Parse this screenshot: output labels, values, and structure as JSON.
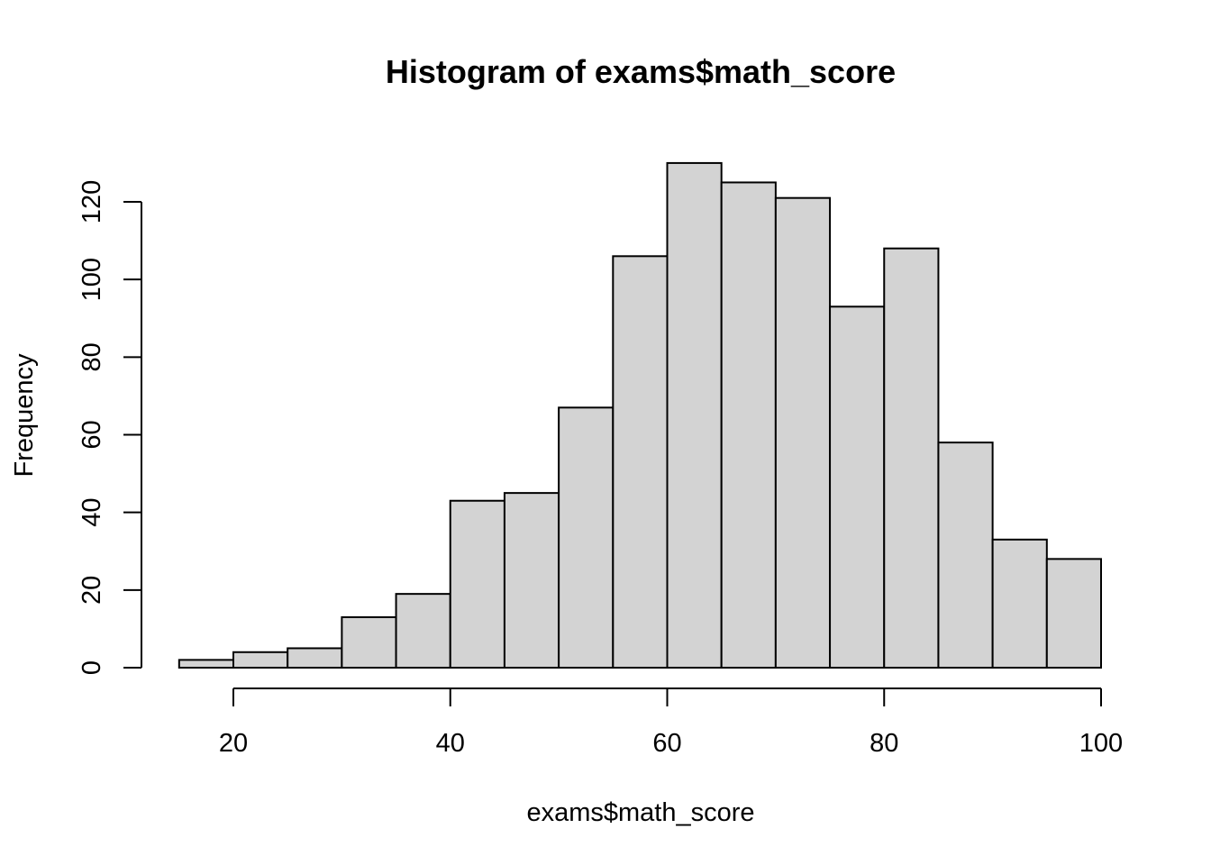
{
  "chart_data": {
    "type": "bar",
    "title": "Histogram of exams$math_score",
    "xlabel": "exams$math_score",
    "ylabel": "Frequency",
    "bins": [
      {
        "from": 15,
        "to": 20,
        "count": 2
      },
      {
        "from": 20,
        "to": 25,
        "count": 4
      },
      {
        "from": 25,
        "to": 30,
        "count": 5
      },
      {
        "from": 30,
        "to": 35,
        "count": 13
      },
      {
        "from": 35,
        "to": 40,
        "count": 19
      },
      {
        "from": 40,
        "to": 45,
        "count": 43
      },
      {
        "from": 45,
        "to": 50,
        "count": 45
      },
      {
        "from": 50,
        "to": 55,
        "count": 67
      },
      {
        "from": 55,
        "to": 60,
        "count": 106
      },
      {
        "from": 60,
        "to": 65,
        "count": 130
      },
      {
        "from": 65,
        "to": 70,
        "count": 125
      },
      {
        "from": 70,
        "to": 75,
        "count": 121
      },
      {
        "from": 75,
        "to": 80,
        "count": 93
      },
      {
        "from": 80,
        "to": 85,
        "count": 108
      },
      {
        "from": 85,
        "to": 90,
        "count": 58
      },
      {
        "from": 90,
        "to": 95,
        "count": 33
      },
      {
        "from": 95,
        "to": 100,
        "count": 28
      }
    ],
    "x_ticks": [
      20,
      40,
      60,
      80,
      100
    ],
    "y_ticks": [
      0,
      20,
      40,
      60,
      80,
      100,
      120
    ],
    "xlim": [
      15,
      100
    ],
    "ylim": [
      0,
      130
    ],
    "grid": false,
    "legend": "none",
    "bar_color": "#d3d3d3",
    "edge_color": "#000000"
  }
}
